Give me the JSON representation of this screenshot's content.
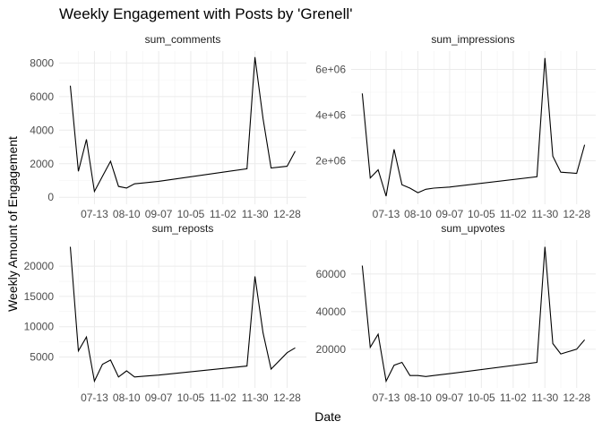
{
  "chart_data": {
    "type": "line",
    "title": "Weekly Engagement with Posts by 'Grenell'",
    "xlabel": "Date",
    "ylabel": "Weekly Amount of Engagement",
    "x_ticks": [
      "07-13",
      "08-10",
      "09-07",
      "10-05",
      "11-02",
      "11-30",
      "12-28"
    ],
    "x": [
      "06-22",
      "06-29",
      "07-06",
      "07-13",
      "07-20",
      "07-27",
      "08-03",
      "08-10",
      "08-17",
      "08-24",
      "09-07",
      "11-23",
      "11-30",
      "12-07",
      "12-14",
      "12-28",
      "01-04"
    ],
    "grid": true,
    "legend": "none",
    "line_color": "#000000",
    "facets": [
      {
        "name": "sum_comments",
        "ylim": [
          0,
          8300
        ],
        "y_ticks": [
          0,
          2000,
          4000,
          6000,
          8000
        ],
        "y_tick_labels": [
          "0",
          "2000",
          "4000",
          "6000",
          "8000"
        ],
        "values": [
          6650,
          1550,
          3450,
          350,
          1250,
          2150,
          650,
          550,
          800,
          850,
          950,
          1700,
          8350,
          4700,
          1750,
          1850,
          2750
        ]
      },
      {
        "name": "sum_impressions",
        "ylim": [
          400000,
          6500000
        ],
        "y_ticks": [
          2000000,
          4000000,
          6000000
        ],
        "y_tick_labels": [
          "2e+06",
          "4e+06",
          "6e+06"
        ],
        "values": [
          4950000,
          1250000,
          1600000,
          450000,
          2500000,
          950000,
          800000,
          600000,
          750000,
          800000,
          850000,
          1300000,
          6500000,
          2200000,
          1500000,
          1450000,
          2700000
        ]
      },
      {
        "name": "sum_reposts",
        "ylim": [
          1000,
          23200
        ],
        "y_ticks": [
          5000,
          10000,
          15000,
          20000
        ],
        "y_tick_labels": [
          "5000",
          "10000",
          "15000",
          "20000"
        ],
        "values": [
          23200,
          6000,
          8300,
          1000,
          3800,
          4500,
          1700,
          2700,
          1700,
          1800,
          2000,
          3500,
          18300,
          9000,
          3000,
          5700,
          6500
        ]
      },
      {
        "name": "sum_upvotes",
        "ylim": [
          3000,
          74500
        ],
        "y_ticks": [
          20000,
          40000,
          60000
        ],
        "y_tick_labels": [
          "20000",
          "40000",
          "60000"
        ],
        "values": [
          64500,
          21000,
          28000,
          3000,
          11500,
          13000,
          6000,
          6000,
          5500,
          6000,
          7000,
          13000,
          74500,
          23000,
          17500,
          20000,
          25000
        ]
      }
    ]
  }
}
